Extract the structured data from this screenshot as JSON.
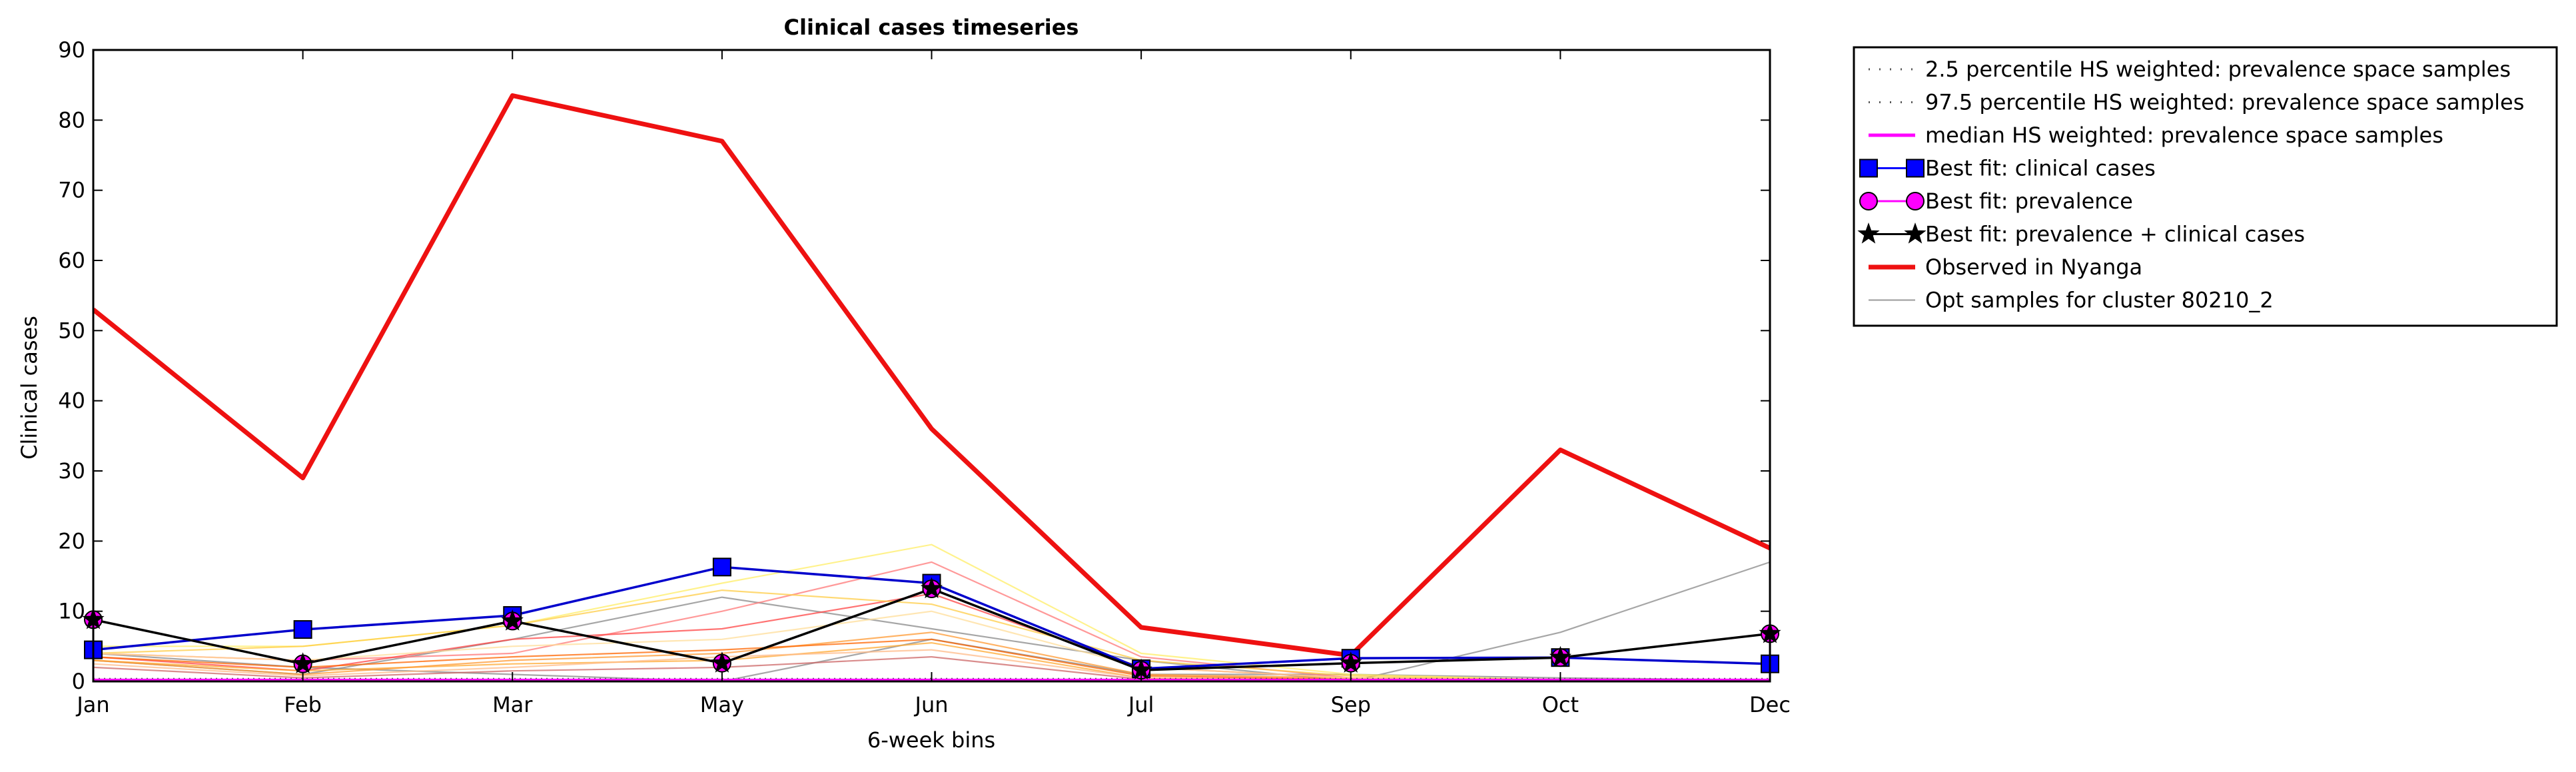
{
  "chart_data": {
    "type": "line",
    "title": "Clinical cases timeseries",
    "xlabel": "6-week bins",
    "ylabel": "Clinical cases",
    "categories": [
      "Jan",
      "Feb",
      "Mar",
      "May",
      "Jun",
      "Jul",
      "Sep",
      "Oct",
      "Dec"
    ],
    "ylim": [
      0,
      90
    ],
    "yticks": [
      "0",
      "10",
      "20",
      "30",
      "40",
      "50",
      "60",
      "70",
      "80",
      "90"
    ],
    "grid": false,
    "legend_position": "outside-right",
    "legend": [
      {
        "label": "2.5 percentile HS weighted: prevalence space samples",
        "style": "dotted",
        "color": "#555555"
      },
      {
        "label": "97.5 percentile HS weighted: prevalence space samples",
        "style": "dotted",
        "color": "#555555"
      },
      {
        "label": "median HS weighted: prevalence space samples",
        "style": "solid",
        "color": "#ff00ff"
      },
      {
        "label": "Best fit: clinical cases",
        "style": "square",
        "color": "#0000ff"
      },
      {
        "label": "Best fit: prevalence",
        "style": "circle",
        "color": "#ff00ff"
      },
      {
        "label": "Best fit: prevalence + clinical cases",
        "style": "star",
        "color": "#000000"
      },
      {
        "label": "Observed in Nyanga",
        "style": "thick",
        "color": "#ee1111"
      },
      {
        "label": "Opt samples for cluster 80210_2",
        "style": "thin",
        "color": "#999999"
      }
    ],
    "series": [
      {
        "key": "observed",
        "color": "#ee1111",
        "values": [
          53,
          29,
          83.5,
          77,
          36,
          7.7,
          3.7,
          33,
          19
        ]
      },
      {
        "key": "best_clinical",
        "color": "#0000cc",
        "marker": "square",
        "values": [
          4.5,
          7.4,
          9.4,
          16.3,
          14,
          1.8,
          3.3,
          3.4,
          2.5
        ]
      },
      {
        "key": "best_prevalence",
        "color": "#ff00ff",
        "marker": "circle",
        "values": [
          8.8,
          2.5,
          8.6,
          2.6,
          13.2,
          1.6,
          2.6,
          3.4,
          6.8
        ]
      },
      {
        "key": "best_prev_clinical",
        "color": "#000000",
        "marker": "star",
        "values": [
          8.8,
          2.5,
          8.6,
          2.6,
          13.2,
          1.6,
          2.6,
          3.4,
          6.8
        ]
      },
      {
        "key": "median",
        "color": "#ff00ff",
        "values": [
          0.2,
          0.2,
          0.2,
          0.2,
          0.2,
          0.2,
          0.2,
          0.2,
          0.2
        ]
      },
      {
        "key": "p025",
        "color": "#555555",
        "values": [
          0,
          0,
          0,
          0,
          0,
          0,
          0,
          0,
          0
        ]
      },
      {
        "key": "p975",
        "color": "#555555",
        "values": [
          0.4,
          0.4,
          0.4,
          0.4,
          0.4,
          0.4,
          0.4,
          0.4,
          0.4
        ]
      }
    ],
    "samples": [
      {
        "color": "#888888",
        "values": [
          3,
          1,
          6,
          12,
          7.5,
          3,
          0,
          7,
          17
        ]
      },
      {
        "color": "#888888",
        "values": [
          4,
          2,
          1,
          0,
          6,
          1,
          1,
          0.5,
          0.2
        ]
      },
      {
        "color": "#ff7777",
        "values": [
          4,
          3,
          4,
          10,
          17,
          3.5,
          0.5,
          0.3,
          0.2
        ]
      },
      {
        "color": "#ff4444",
        "values": [
          3.5,
          1.5,
          6,
          7.5,
          12.5,
          2,
          0.5,
          0.2,
          0.1
        ]
      },
      {
        "color": "#ffee66",
        "values": [
          5,
          5,
          8,
          14,
          19.5,
          4,
          1,
          0.2,
          0.1
        ]
      },
      {
        "color": "#ffcc44",
        "values": [
          4,
          5,
          8,
          13,
          11,
          3,
          0.8,
          0.2,
          0.1
        ]
      },
      {
        "color": "#ffaa33",
        "values": [
          3,
          1.5,
          2.5,
          3,
          5.5,
          0.5,
          0.2,
          0.1,
          0.1
        ]
      },
      {
        "color": "#ffbb88",
        "values": [
          2.5,
          0.8,
          2,
          3.5,
          4.5,
          0.5,
          0.3,
          0.1,
          0.1
        ]
      },
      {
        "color": "#ff9933",
        "values": [
          3,
          1,
          3,
          4,
          7,
          1,
          0.5,
          0.2,
          0.1
        ]
      },
      {
        "color": "#ff6600",
        "values": [
          3.5,
          2,
          3.5,
          4.5,
          6,
          0.8,
          0.3,
          0.2,
          0.1
        ]
      },
      {
        "color": "#cc6666",
        "values": [
          2,
          0.5,
          1.5,
          2,
          3.5,
          0.3,
          0.1,
          0.1,
          0.1
        ]
      },
      {
        "color": "#ffdd99",
        "values": [
          4,
          3,
          5,
          6,
          10,
          2,
          0.5,
          0.2,
          0.1
        ]
      }
    ]
  }
}
